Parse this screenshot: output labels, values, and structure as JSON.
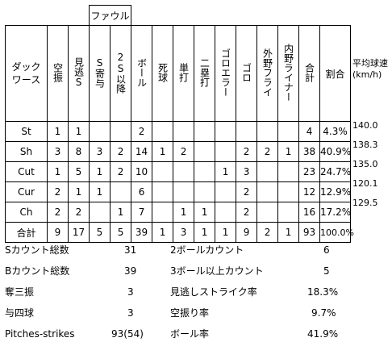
{
  "foul_label": "ファウル",
  "columns": [
    "ダックワース",
    "空振",
    "見逃S",
    "S寄与",
    "2S以降",
    "ボール",
    "死球",
    "単打",
    "二塁打",
    "ゴロエラー",
    "ゴロ",
    "外野フライ",
    "内野ライナー",
    "合計",
    "割合"
  ],
  "rows": [
    {
      "name": "St",
      "cells": [
        "1",
        "1",
        "",
        "",
        "2",
        "",
        "",
        "",
        "",
        "",
        "",
        "",
        "4",
        "4.3%"
      ]
    },
    {
      "name": "Sh",
      "cells": [
        "3",
        "8",
        "3",
        "2",
        "14",
        "1",
        "2",
        "",
        "",
        "2",
        "2",
        "1",
        "38",
        "40.9%"
      ]
    },
    {
      "name": "Cut",
      "cells": [
        "1",
        "5",
        "1",
        "2",
        "10",
        "",
        "",
        "",
        "1",
        "3",
        "",
        "",
        "23",
        "24.7%"
      ]
    },
    {
      "name": "Cur",
      "cells": [
        "2",
        "1",
        "1",
        "",
        "6",
        "",
        "",
        "",
        "",
        "2",
        "",
        "",
        "12",
        "12.9%"
      ]
    },
    {
      "name": "Ch",
      "cells": [
        "2",
        "2",
        "",
        "1",
        "7",
        "",
        "1",
        "1",
        "",
        "2",
        "",
        "",
        "16",
        "17.2%"
      ]
    },
    {
      "name": "合計",
      "cells": [
        "9",
        "17",
        "5",
        "5",
        "39",
        "1",
        "3",
        "1",
        "1",
        "9",
        "2",
        "1",
        "93",
        "100.0%"
      ]
    }
  ],
  "avg_speed": {
    "title": "平均球速",
    "unit": "(km/h)",
    "values": [
      "140.0",
      "138.3",
      "135.0",
      "120.1",
      "129.5"
    ]
  },
  "summary": {
    "left": [
      {
        "label": "Sカウント総数",
        "value": "31"
      },
      {
        "label": "Bカウント総数",
        "value": "39"
      },
      {
        "label": "奪三振",
        "value": "3"
      },
      {
        "label": "与四球",
        "value": "3"
      },
      {
        "label": "Pitches-strikes",
        "value": "93(54)"
      }
    ],
    "right": [
      {
        "label": "2ボールカウント",
        "value": "6"
      },
      {
        "label": "3ボール以上カウント",
        "value": "5"
      },
      {
        "label": "見逃しストライク率",
        "value": "18.3%"
      },
      {
        "label": "空振り率",
        "value": "9.7%"
      },
      {
        "label": "ボール率",
        "value": "41.9%"
      }
    ]
  }
}
